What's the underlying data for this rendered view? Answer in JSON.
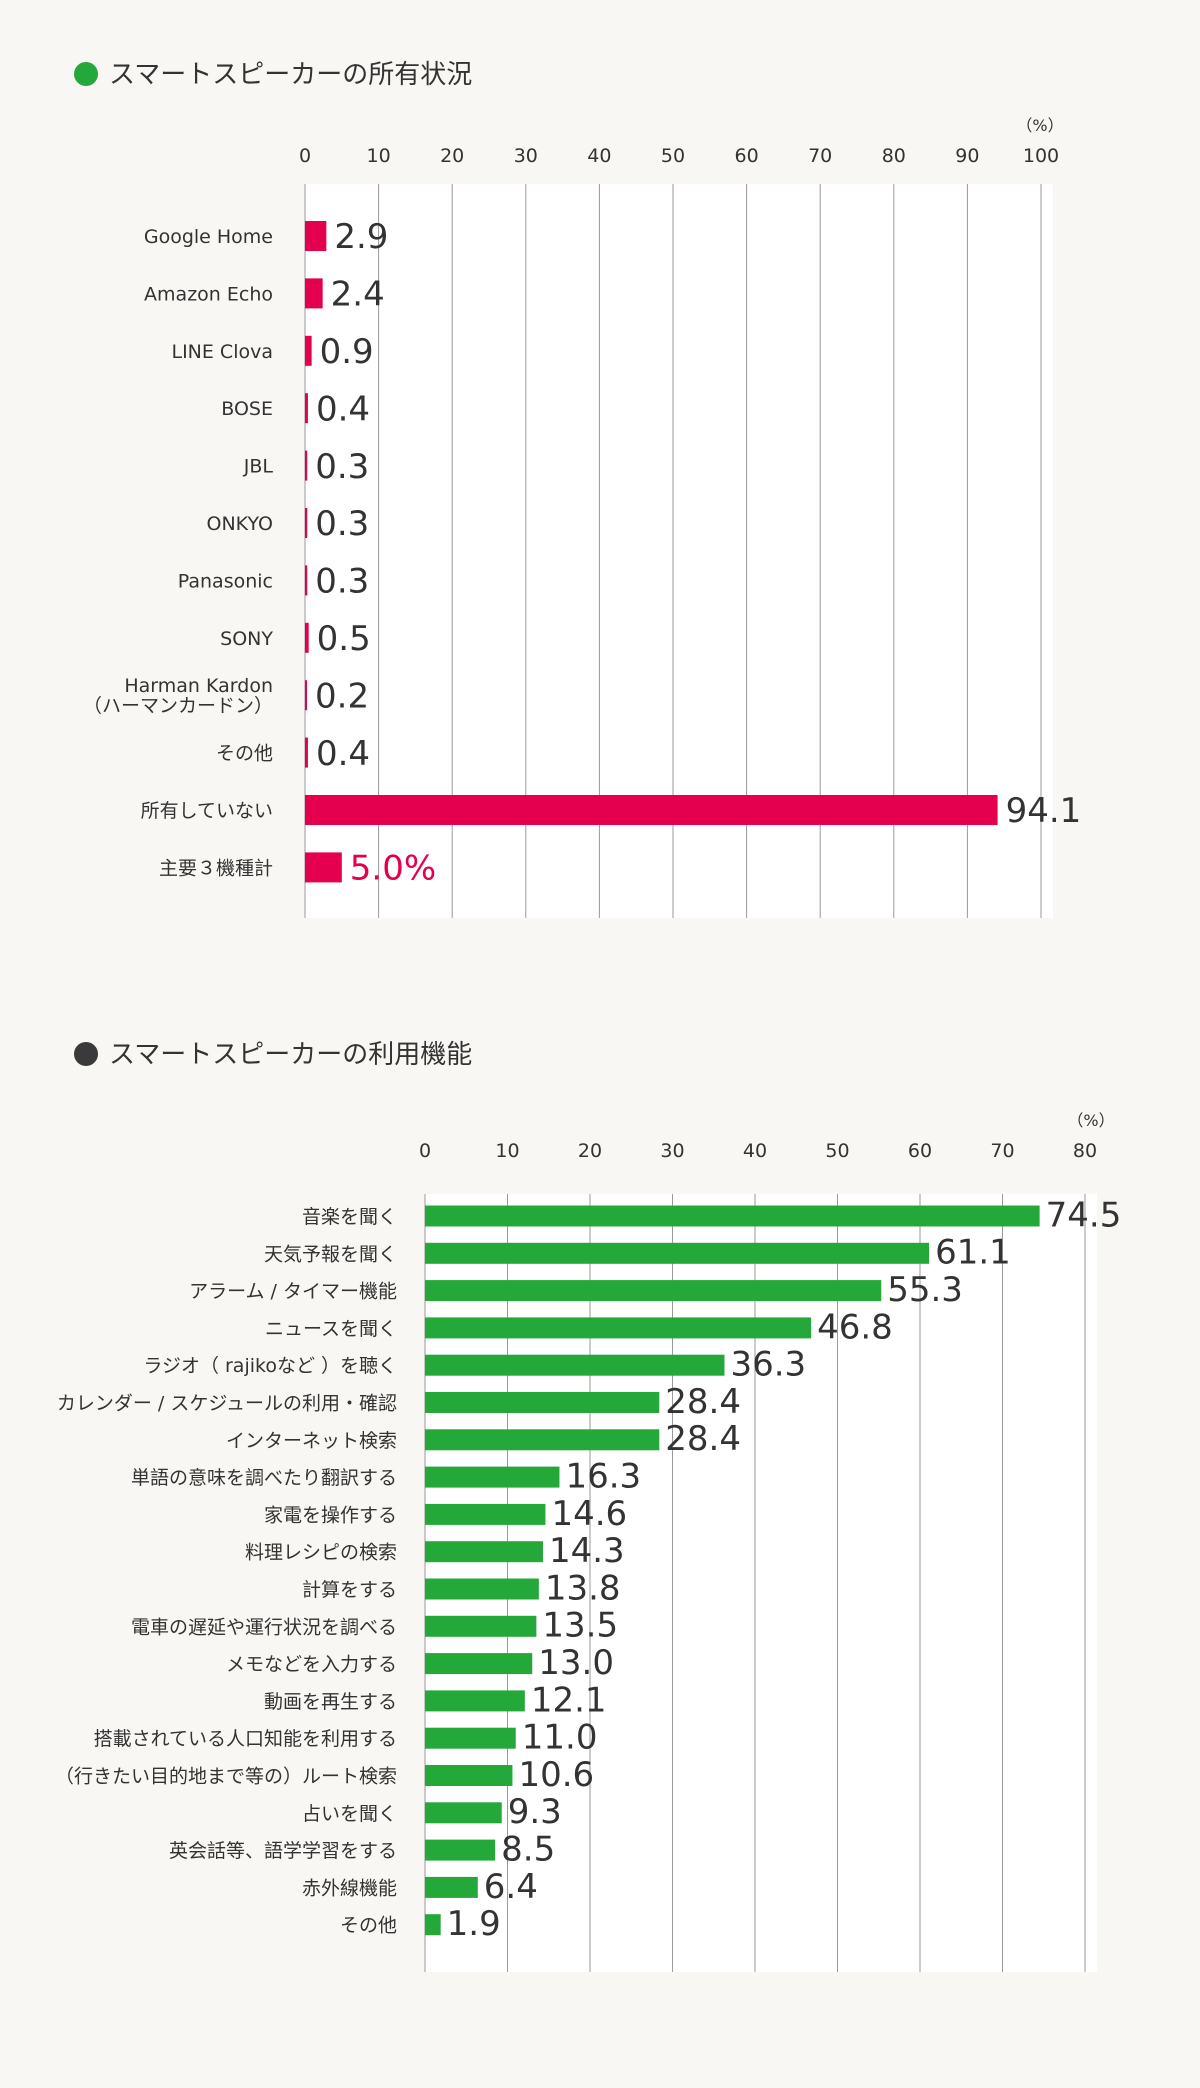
{
  "colors": {
    "background": "#f8f7f3",
    "plot_background": "#ffffff",
    "red": "#e4004f",
    "green": "#25a83a",
    "dark_bullet": "#3a3a3a",
    "text": "#333333",
    "grid": "#9a9a9a"
  },
  "chart_data": [
    {
      "type": "bar",
      "orientation": "horizontal",
      "title": "スマートスピーカーの所有状況",
      "bullet_color": "#25a83a",
      "bar_color": "#e4004f",
      "unit_label": "（%）",
      "xlim": [
        0,
        100
      ],
      "ticks": [
        0,
        10,
        20,
        30,
        40,
        50,
        60,
        70,
        80,
        90,
        100
      ],
      "categories": [
        [
          "Google Home"
        ],
        [
          "Amazon Echo"
        ],
        [
          "LINE Clova"
        ],
        [
          "BOSE"
        ],
        [
          "JBL"
        ],
        [
          "ONKYO"
        ],
        [
          "Panasonic"
        ],
        [
          "SONY"
        ],
        [
          "Harman Kardon",
          "（ハーマンカードン）"
        ],
        [
          "その他"
        ],
        [
          "所有していない"
        ],
        [
          "主要３機種計"
        ]
      ],
      "values": [
        2.9,
        2.4,
        0.9,
        0.4,
        0.3,
        0.3,
        0.3,
        0.5,
        0.2,
        0.4,
        94.1,
        5.0
      ],
      "value_labels": [
        "2.9",
        "2.4",
        "0.9",
        "0.4",
        "0.3",
        "0.3",
        "0.3",
        "0.5",
        "0.2",
        "0.4",
        "94.1",
        "5.0%"
      ],
      "highlight_label_index": 11
    },
    {
      "type": "bar",
      "orientation": "horizontal",
      "title": "スマートスピーカーの利用機能",
      "bullet_color": "#3a3a3a",
      "bar_color": "#25a83a",
      "unit_label": "（%）",
      "xlim": [
        0,
        80
      ],
      "ticks": [
        0,
        10,
        20,
        30,
        40,
        50,
        60,
        70,
        80
      ],
      "categories": [
        [
          "音楽を聞く"
        ],
        [
          "天気予報を聞く"
        ],
        [
          "アラーム / タイマー機能"
        ],
        [
          "ニュースを聞く"
        ],
        [
          "ラジオ（ rajikoなど ）を聴く"
        ],
        [
          "カレンダー / スケジュールの利用・確認"
        ],
        [
          "インターネット検索"
        ],
        [
          "単語の意味を調べたり翻訳する"
        ],
        [
          "家電を操作する"
        ],
        [
          "料理レシピの検索"
        ],
        [
          "計算をする"
        ],
        [
          "電車の遅延や運行状況を調べる"
        ],
        [
          "メモなどを入力する"
        ],
        [
          "動画を再生する"
        ],
        [
          "搭載されている人口知能を利用する"
        ],
        [
          "（行きたい目的地まで等の）ルート検索"
        ],
        [
          "占いを聞く"
        ],
        [
          "英会話等、語学学習をする"
        ],
        [
          "赤外線機能"
        ],
        [
          "その他"
        ]
      ],
      "values": [
        74.5,
        61.1,
        55.3,
        46.8,
        36.3,
        28.4,
        28.4,
        16.3,
        14.6,
        14.3,
        13.8,
        13.5,
        13.0,
        12.1,
        11.0,
        10.6,
        9.3,
        8.5,
        6.4,
        1.9
      ],
      "value_labels": [
        "74.5",
        "61.1",
        "55.3",
        "46.8",
        "36.3",
        "28.4",
        "28.4",
        "16.3",
        "14.6",
        "14.3",
        "13.8",
        "13.5",
        "13.0",
        "12.1",
        "11.0",
        "10.6",
        "9.3",
        "8.5",
        "6.4",
        "1.9"
      ]
    }
  ]
}
